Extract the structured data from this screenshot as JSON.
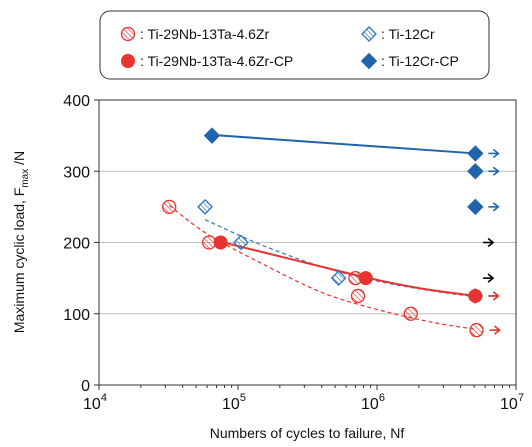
{
  "chart_data": {
    "type": "scatter",
    "xlabel": "Numbers of cycles to failure, Nf",
    "ylabel_main": "Maximum cyclic load, F",
    "ylabel_sub": "max",
    "ylabel_tail": " /N",
    "x_scale": "log",
    "xlim": [
      10000,
      10000000
    ],
    "ylim": [
      0,
      400
    ],
    "x_ticks": [
      {
        "value": 10000,
        "base": "10",
        "exp": "4"
      },
      {
        "value": 100000,
        "base": "10",
        "exp": "5"
      },
      {
        "value": 1000000,
        "base": "10",
        "exp": "6"
      },
      {
        "value": 10000000,
        "base": "10",
        "exp": "7"
      }
    ],
    "y_ticks": [
      0,
      100,
      200,
      300,
      400
    ],
    "grid": "horizontal",
    "legend_position": "top",
    "legend": [
      {
        "label": ": Ti-29Nb-13Ta-4.6Zr",
        "marker": "hatched-circle",
        "color": "#e8332e"
      },
      {
        "label": ": Ti-12Cr",
        "marker": "hatched-diamond",
        "color": "#2f73b8"
      },
      {
        "label": ": Ti-29Nb-13Ta-4.6Zr-CP",
        "marker": "filled-circle",
        "color": "#e8332e"
      },
      {
        "label": ": Ti-12Cr-CP",
        "marker": "filled-diamond",
        "color": "#1f64ad"
      }
    ],
    "series": [
      {
        "name": "Ti-29Nb-13Ta-4.6Zr",
        "marker": "hatched-circle",
        "color": "#e8332e",
        "line": "dashed",
        "points": [
          [
            32000,
            250
          ],
          [
            62000,
            200
          ],
          [
            700000,
            150
          ],
          [
            730000,
            125
          ],
          [
            1750000,
            100
          ],
          [
            5200000,
            77
          ]
        ],
        "runout": [
          false,
          false,
          false,
          false,
          false,
          true
        ]
      },
      {
        "name": "Ti-12Cr",
        "marker": "hatched-diamond",
        "color": "#2f73b8",
        "line": "dashed",
        "points": [
          [
            58000,
            250
          ],
          [
            105000,
            200
          ],
          [
            530000,
            150
          ],
          [
            5100000,
            125
          ]
        ],
        "runout": [
          false,
          false,
          false,
          true
        ]
      },
      {
        "name": "Ti-29Nb-13Ta-4.6Zr-CP",
        "marker": "filled-circle",
        "color": "#e8332e",
        "line": "solid",
        "points": [
          [
            75000,
            200
          ],
          [
            830000,
            150
          ],
          [
            5100000,
            125
          ]
        ],
        "runout": [
          false,
          false,
          true
        ]
      },
      {
        "name": "Ti-12Cr-CP",
        "marker": "filled-diamond",
        "color": "#1f64ad",
        "line": "solid",
        "points": [
          [
            65000,
            350
          ],
          [
            5100000,
            325
          ],
          [
            5100000,
            300
          ],
          [
            5100000,
            250
          ]
        ],
        "runout": [
          false,
          true,
          true,
          true
        ]
      }
    ],
    "fit_curves": [
      {
        "series": "Ti-29Nb-13Ta-4.6Zr",
        "color": "#e8332e",
        "style": "dashed",
        "points": [
          [
            32000,
            252
          ],
          [
            60000,
            212
          ],
          [
            150000,
            170
          ],
          [
            400000,
            130
          ],
          [
            1000000,
            106
          ],
          [
            2500000,
            88
          ],
          [
            5200000,
            78
          ]
        ]
      },
      {
        "series": "Ti-12Cr",
        "color": "#2f73b8",
        "style": "dashed",
        "points": [
          [
            58000,
            232
          ],
          [
            150000,
            196
          ],
          [
            400000,
            166
          ],
          [
            1000000,
            146
          ],
          [
            2500000,
            132
          ],
          [
            5100000,
            124
          ]
        ]
      },
      {
        "series": "Ti-29Nb-13Ta-4.6Zr-CP",
        "color": "#e8332e",
        "style": "solid",
        "points": [
          [
            75000,
            201
          ],
          [
            300000,
            172
          ],
          [
            830000,
            151
          ],
          [
            2000000,
            136
          ],
          [
            5100000,
            125
          ]
        ]
      },
      {
        "series": "Ti-12Cr-CP",
        "color": "#1f64ad",
        "style": "solid",
        "points": [
          [
            65000,
            351
          ],
          [
            5100000,
            325
          ]
        ]
      }
    ],
    "extra_runouts": [
      {
        "x": 6300000,
        "y": 200,
        "color": "#000000"
      },
      {
        "x": 6300000,
        "y": 150,
        "color": "#000000"
      }
    ]
  }
}
